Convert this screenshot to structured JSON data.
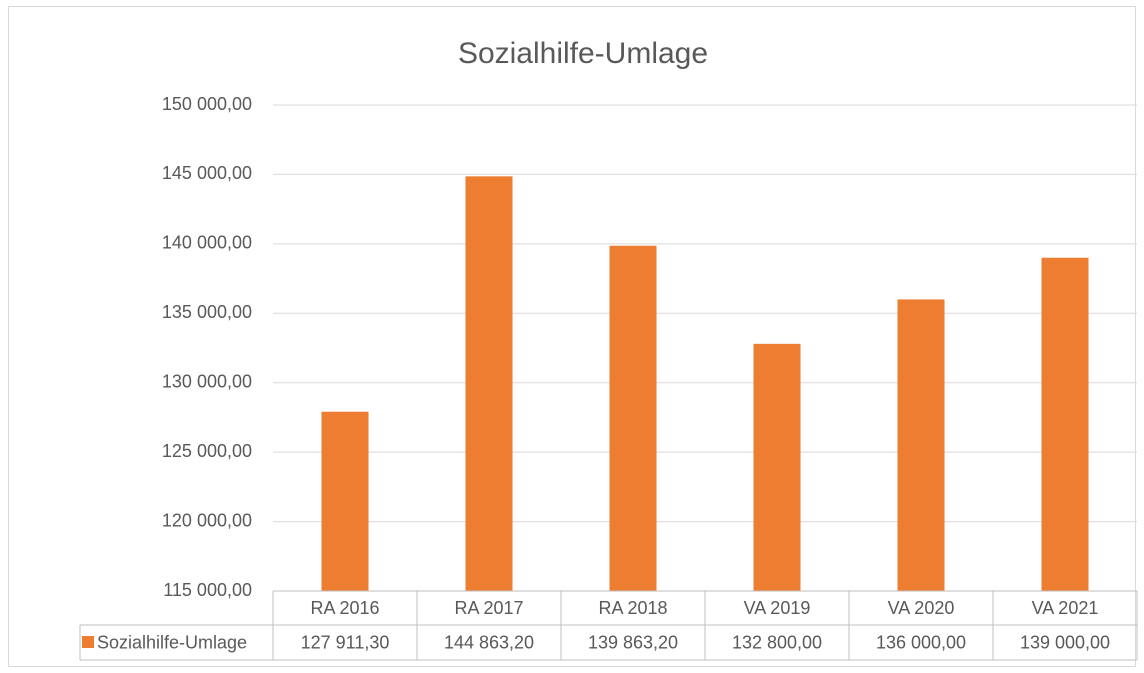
{
  "chart_data": {
    "type": "bar",
    "title": "Sozialhilfe-Umlage",
    "categories": [
      "RA 2016",
      "RA 2017",
      "RA 2018",
      "VA 2019",
      "VA 2020",
      "VA 2021"
    ],
    "series": [
      {
        "name": "Sozialhilfe-Umlage",
        "color": "#ed7d31",
        "values": [
          127911.3,
          144863.2,
          139863.2,
          132800,
          136000,
          139000
        ],
        "value_labels": [
          "127 911,30",
          "144 863,20",
          "139 863,20",
          "132 800,00",
          "136 000,00",
          "139 000,00"
        ]
      }
    ],
    "ylim": [
      115000,
      150000
    ],
    "yticks": [
      {
        "value": 115000,
        "label": "115 000,00"
      },
      {
        "value": 120000,
        "label": "120 000,00"
      },
      {
        "value": 125000,
        "label": "125 000,00"
      },
      {
        "value": 130000,
        "label": "130 000,00"
      },
      {
        "value": 135000,
        "label": "135 000,00"
      },
      {
        "value": 140000,
        "label": "140 000,00"
      },
      {
        "value": 145000,
        "label": "145 000,00"
      },
      {
        "value": 150000,
        "label": "150 000,00"
      }
    ],
    "grid": true,
    "data_table": true
  }
}
